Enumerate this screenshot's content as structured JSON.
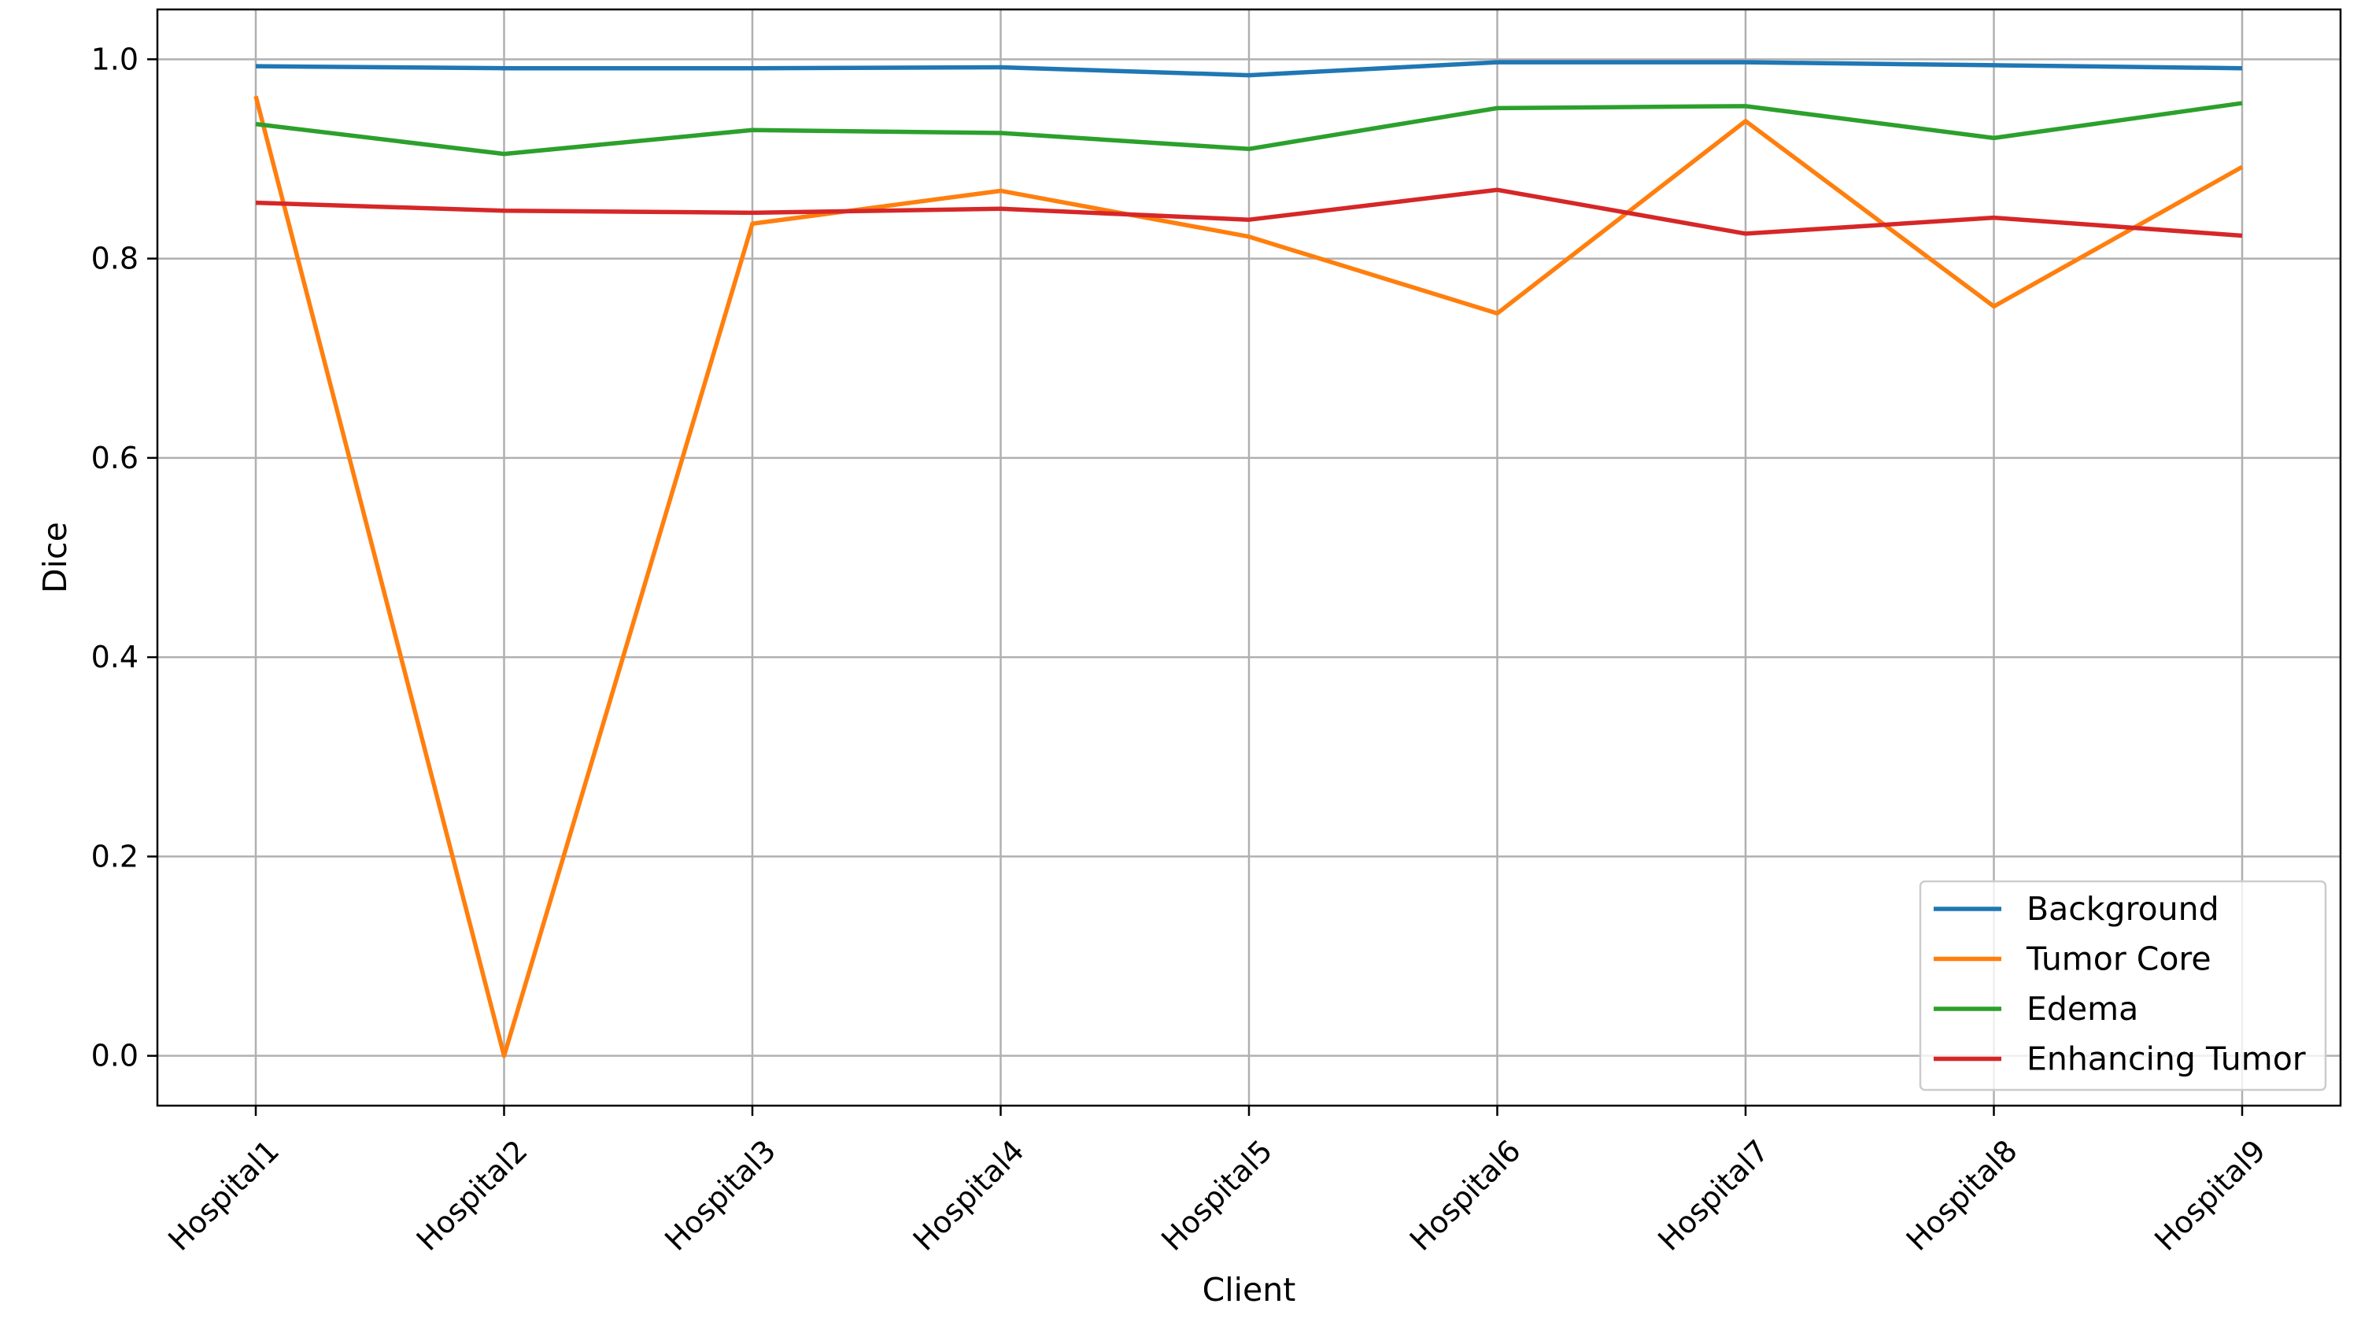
{
  "chart_data": {
    "type": "line",
    "title": "",
    "xlabel": "Client",
    "ylabel": "Dice",
    "categories": [
      "Hospital1",
      "Hospital2",
      "Hospital3",
      "Hospital4",
      "Hospital5",
      "Hospital6",
      "Hospital7",
      "Hospital8",
      "Hospital9"
    ],
    "ylim": [
      -0.05,
      1.05
    ],
    "yticks": [
      "0.0",
      "0.2",
      "0.4",
      "0.6",
      "0.8",
      "1.0"
    ],
    "grid": true,
    "legend_position": "lower-right",
    "series": [
      {
        "name": "Background",
        "color": "#1f77b4",
        "values": [
          0.993,
          0.991,
          0.991,
          0.992,
          0.984,
          0.997,
          0.997,
          0.994,
          0.991
        ]
      },
      {
        "name": "Tumor Core",
        "color": "#ff7f0e",
        "values": [
          0.963,
          0.0,
          0.835,
          0.868,
          0.822,
          0.745,
          0.938,
          0.752,
          0.892
        ]
      },
      {
        "name": "Edema",
        "color": "#2ca02c",
        "values": [
          0.935,
          0.905,
          0.929,
          0.926,
          0.91,
          0.951,
          0.953,
          0.921,
          0.956
        ]
      },
      {
        "name": "Enhancing Tumor",
        "color": "#d62728",
        "values": [
          0.856,
          0.848,
          0.846,
          0.85,
          0.839,
          0.869,
          0.825,
          0.841,
          0.823
        ]
      }
    ]
  }
}
